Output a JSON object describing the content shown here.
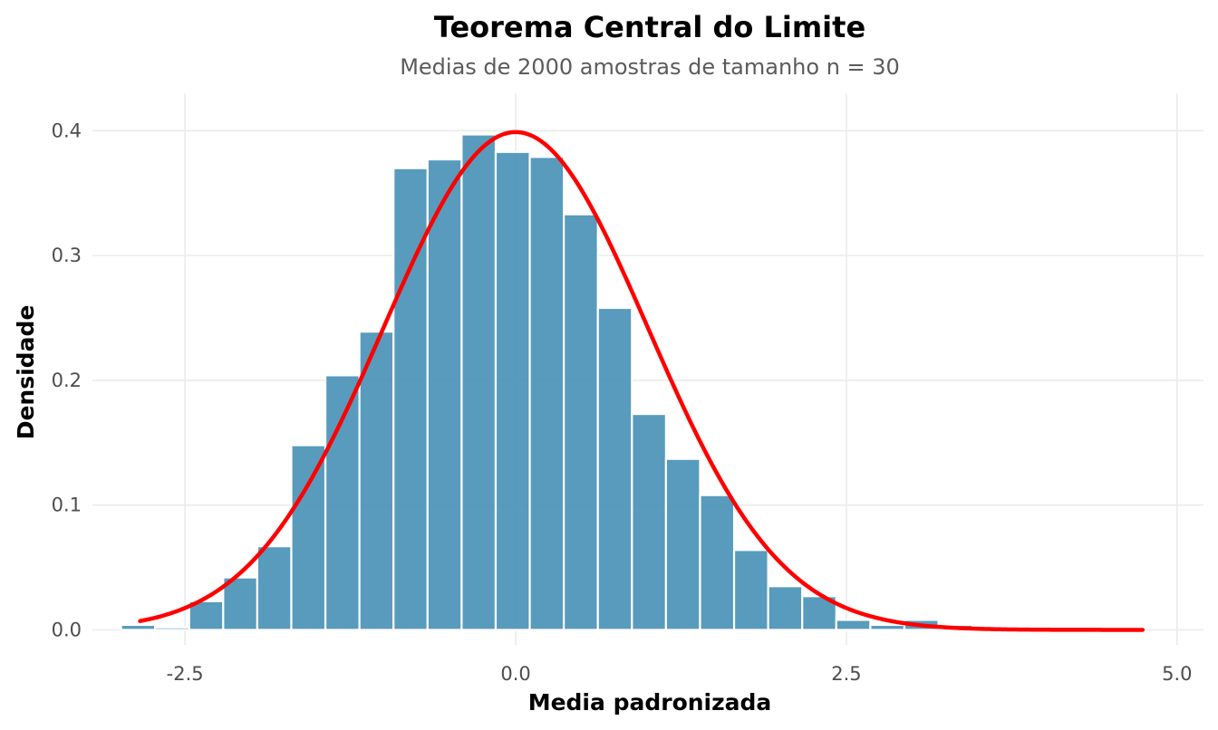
{
  "colors": {
    "bar_fill": "#4a93b7",
    "bar_edge": "#ffffff",
    "curve": "#ff0000",
    "grid": "#ebebeb"
  },
  "chart_data": {
    "type": "bar",
    "title": "Teorema Central do Limite",
    "subtitle": "Medias de 2000 amostras de tamanho n = 30",
    "xlabel": "Media padronizada",
    "ylabel": "Densidade",
    "xlim": [
      -3.2,
      5.2
    ],
    "ylim": [
      -0.012,
      0.43
    ],
    "x_ticks": [
      -2.5,
      0.0,
      2.5,
      5.0
    ],
    "x_tick_labels": [
      "-2.5",
      "0.0",
      "2.5",
      "5.0"
    ],
    "y_ticks": [
      0.0,
      0.1,
      0.2,
      0.3,
      0.4
    ],
    "y_tick_labels": [
      "0.0",
      "0.1",
      "0.2",
      "0.3",
      "0.4"
    ],
    "grid": true,
    "legend": "none",
    "histogram": {
      "bin_width": 0.2575,
      "bin_centers": [
        -2.855,
        -2.5975,
        -2.34,
        -2.0825,
        -1.825,
        -1.5675,
        -1.31,
        -1.0525,
        -0.795,
        -0.5375,
        -0.28,
        -0.0225,
        0.235,
        0.4925,
        0.75,
        1.0075,
        1.265,
        1.5225,
        1.78,
        2.0375,
        2.295,
        2.5525,
        2.81,
        3.0675,
        3.325,
        3.5825,
        3.84,
        4.0975,
        4.355,
        4.6125
      ],
      "density": [
        0.004,
        0.002,
        0.023,
        0.042,
        0.067,
        0.148,
        0.204,
        0.239,
        0.37,
        0.377,
        0.397,
        0.383,
        0.379,
        0.333,
        0.258,
        0.173,
        0.137,
        0.108,
        0.064,
        0.035,
        0.027,
        0.008,
        0.004,
        0.008,
        0.004,
        0.001,
        0.002,
        0.002,
        0.0,
        0.0
      ]
    },
    "curve": {
      "name": "N(0,1) density",
      "distribution": "normal",
      "mean": 0,
      "sd": 1,
      "x_range": [
        -2.84,
        4.74
      ]
    }
  }
}
